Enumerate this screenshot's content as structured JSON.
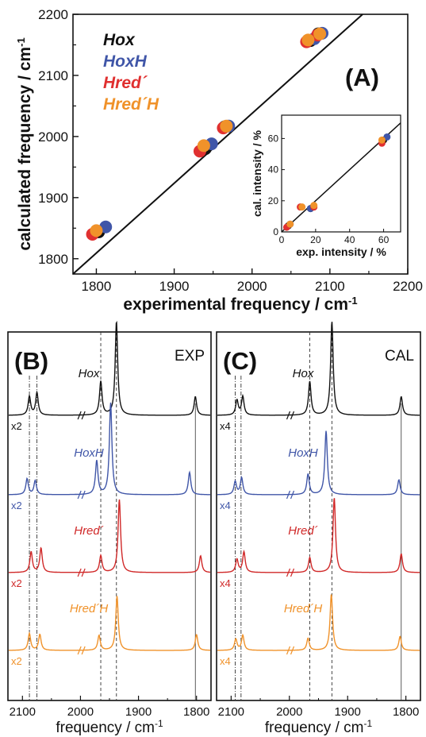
{
  "chart_data": [
    {
      "panel": "A",
      "type": "scatter",
      "panel_label": "(A)",
      "xlabel": "experimental frequency / cm",
      "ylabel": "calculated frequency / cm",
      "unit_superscript": "-1",
      "xlim": [
        1770,
        2200
      ],
      "ylim": [
        1775,
        2200
      ],
      "xticks": [
        "1800",
        "1900",
        "2000",
        "2100",
        "2200"
      ],
      "yticks": [
        "1800",
        "1900",
        "2000",
        "2100",
        "2200"
      ],
      "fit_line": {
        "x": [
          1770,
          2142
        ],
        "y": [
          1775,
          2200
        ]
      },
      "series": [
        {
          "name": "Hox",
          "color": "#111111",
          "x": [
            1803,
            1940,
            1965,
            2075,
            2085
          ],
          "y": [
            1844,
            1980,
            2016,
            2157,
            2168
          ]
        },
        {
          "name": "HoxH",
          "color": "#4056a8",
          "x": [
            1812,
            1948,
            1970,
            2080,
            2090
          ],
          "y": [
            1852,
            1988,
            2017,
            2160,
            2169
          ]
        },
        {
          "name": "Hred´",
          "color": "#e03030",
          "x": [
            1795,
            1933,
            1963,
            2070,
            2084
          ],
          "y": [
            1840,
            1976,
            2014,
            2155,
            2166
          ]
        },
        {
          "name": "Hred´H",
          "color": "#f0922a",
          "x": [
            1800,
            1938,
            1967,
            2072,
            2087
          ],
          "y": [
            1846,
            1985,
            2017,
            2158,
            2168
          ]
        }
      ],
      "inset": {
        "xlabel": "exp. intensity / %",
        "ylabel": "cal. intensity / %",
        "xlim": [
          0,
          70
        ],
        "ylim": [
          0,
          75
        ],
        "xticks": [
          "0",
          "20",
          "40",
          "60"
        ],
        "yticks": [
          "0",
          "20",
          "40",
          "60"
        ],
        "fit_line": {
          "x": [
            0,
            70
          ],
          "y": [
            0,
            70
          ]
        },
        "series": [
          {
            "name": "Hox",
            "color": "#111111",
            "x": [
              4,
              17,
              60
            ],
            "y": [
              4,
              15,
              59
            ]
          },
          {
            "name": "HoxH",
            "color": "#4056a8",
            "x": [
              5,
              17,
              62
            ],
            "y": [
              5,
              15,
              61
            ]
          },
          {
            "name": "Hred´",
            "color": "#e03030",
            "x": [
              3,
              11,
              19,
              59
            ],
            "y": [
              3,
              16,
              16,
              57
            ]
          },
          {
            "name": "Hred´H",
            "color": "#f0922a",
            "x": [
              5,
              12,
              19,
              59
            ],
            "y": [
              5,
              16,
              17,
              59
            ]
          }
        ]
      }
    },
    {
      "panel": "B",
      "type": "line",
      "panel_label": "(B)",
      "corner_label": "EXP",
      "xlabel": "frequency / cm",
      "unit_superscript": "-1",
      "xlim": [
        2125,
        1775
      ],
      "xticks": [
        "2100",
        "2000",
        "1900",
        "1800"
      ],
      "vlines_dashdot": [
        2088,
        2075
      ],
      "vlines_dashed": [
        1965,
        1938
      ],
      "vline_solid": [
        1802
      ],
      "series": [
        {
          "name": "Hox",
          "color": "#111111",
          "scale": "x2",
          "peaks": [
            [
              2088,
              0.2
            ],
            [
              2075,
              0.24
            ],
            [
              1965,
              0.36
            ],
            [
              1938,
              1.0
            ],
            [
              1802,
              0.2
            ]
          ]
        },
        {
          "name": "HoxH",
          "color": "#4056a8",
          "scale": "x2",
          "peaks": [
            [
              2092,
              0.17
            ],
            [
              2078,
              0.15
            ],
            [
              1972,
              0.36
            ],
            [
              1948,
              0.98
            ],
            [
              1812,
              0.24
            ]
          ]
        },
        {
          "name": "Hred´",
          "color": "#d02828",
          "scale": "x2",
          "peaks": [
            [
              2085,
              0.22
            ],
            [
              2068,
              0.26
            ],
            [
              1965,
              0.18
            ],
            [
              1933,
              0.78
            ],
            [
              1793,
              0.18
            ]
          ]
        },
        {
          "name": "Hred´H",
          "color": "#f0922a",
          "scale": "x2",
          "peaks": [
            [
              2088,
              0.18
            ],
            [
              2070,
              0.17
            ],
            [
              1968,
              0.16
            ],
            [
              1937,
              0.58
            ],
            [
              1800,
              0.17
            ]
          ]
        }
      ]
    },
    {
      "panel": "C",
      "type": "line",
      "panel_label": "(C)",
      "corner_label": "CAL",
      "xlabel": "frequency / cm",
      "unit_superscript": "-1",
      "xlim": [
        2125,
        1775
      ],
      "xticks": [
        "2100",
        "2000",
        "1900",
        "1800"
      ],
      "vlines_dashdot": [
        2093,
        2083
      ],
      "vlines_dashed": [
        1965,
        1927
      ],
      "vline_solid": [
        1808
      ],
      "series": [
        {
          "name": "Hox",
          "color": "#111111",
          "scale": "x4",
          "peaks": [
            [
              2090,
              0.16
            ],
            [
              2080,
              0.2
            ],
            [
              1965,
              0.36
            ],
            [
              1927,
              1.0
            ],
            [
              1808,
              0.2
            ]
          ]
        },
        {
          "name": "HoxH",
          "color": "#4056a8",
          "scale": "x4",
          "peaks": [
            [
              2093,
              0.14
            ],
            [
              2082,
              0.18
            ],
            [
              1968,
              0.22
            ],
            [
              1937,
              0.68
            ],
            [
              1812,
              0.16
            ]
          ]
        },
        {
          "name": "Hred´",
          "color": "#d02828",
          "scale": "x4",
          "peaks": [
            [
              2090,
              0.14
            ],
            [
              2078,
              0.22
            ],
            [
              1965,
              0.16
            ],
            [
              1923,
              0.8
            ],
            [
              1808,
              0.2
            ]
          ]
        },
        {
          "name": "Hred´H",
          "color": "#f0922a",
          "scale": "x4",
          "peaks": [
            [
              2092,
              0.12
            ],
            [
              2080,
              0.16
            ],
            [
              1968,
              0.13
            ],
            [
              1928,
              0.6
            ],
            [
              1810,
              0.15
            ]
          ]
        }
      ]
    }
  ]
}
